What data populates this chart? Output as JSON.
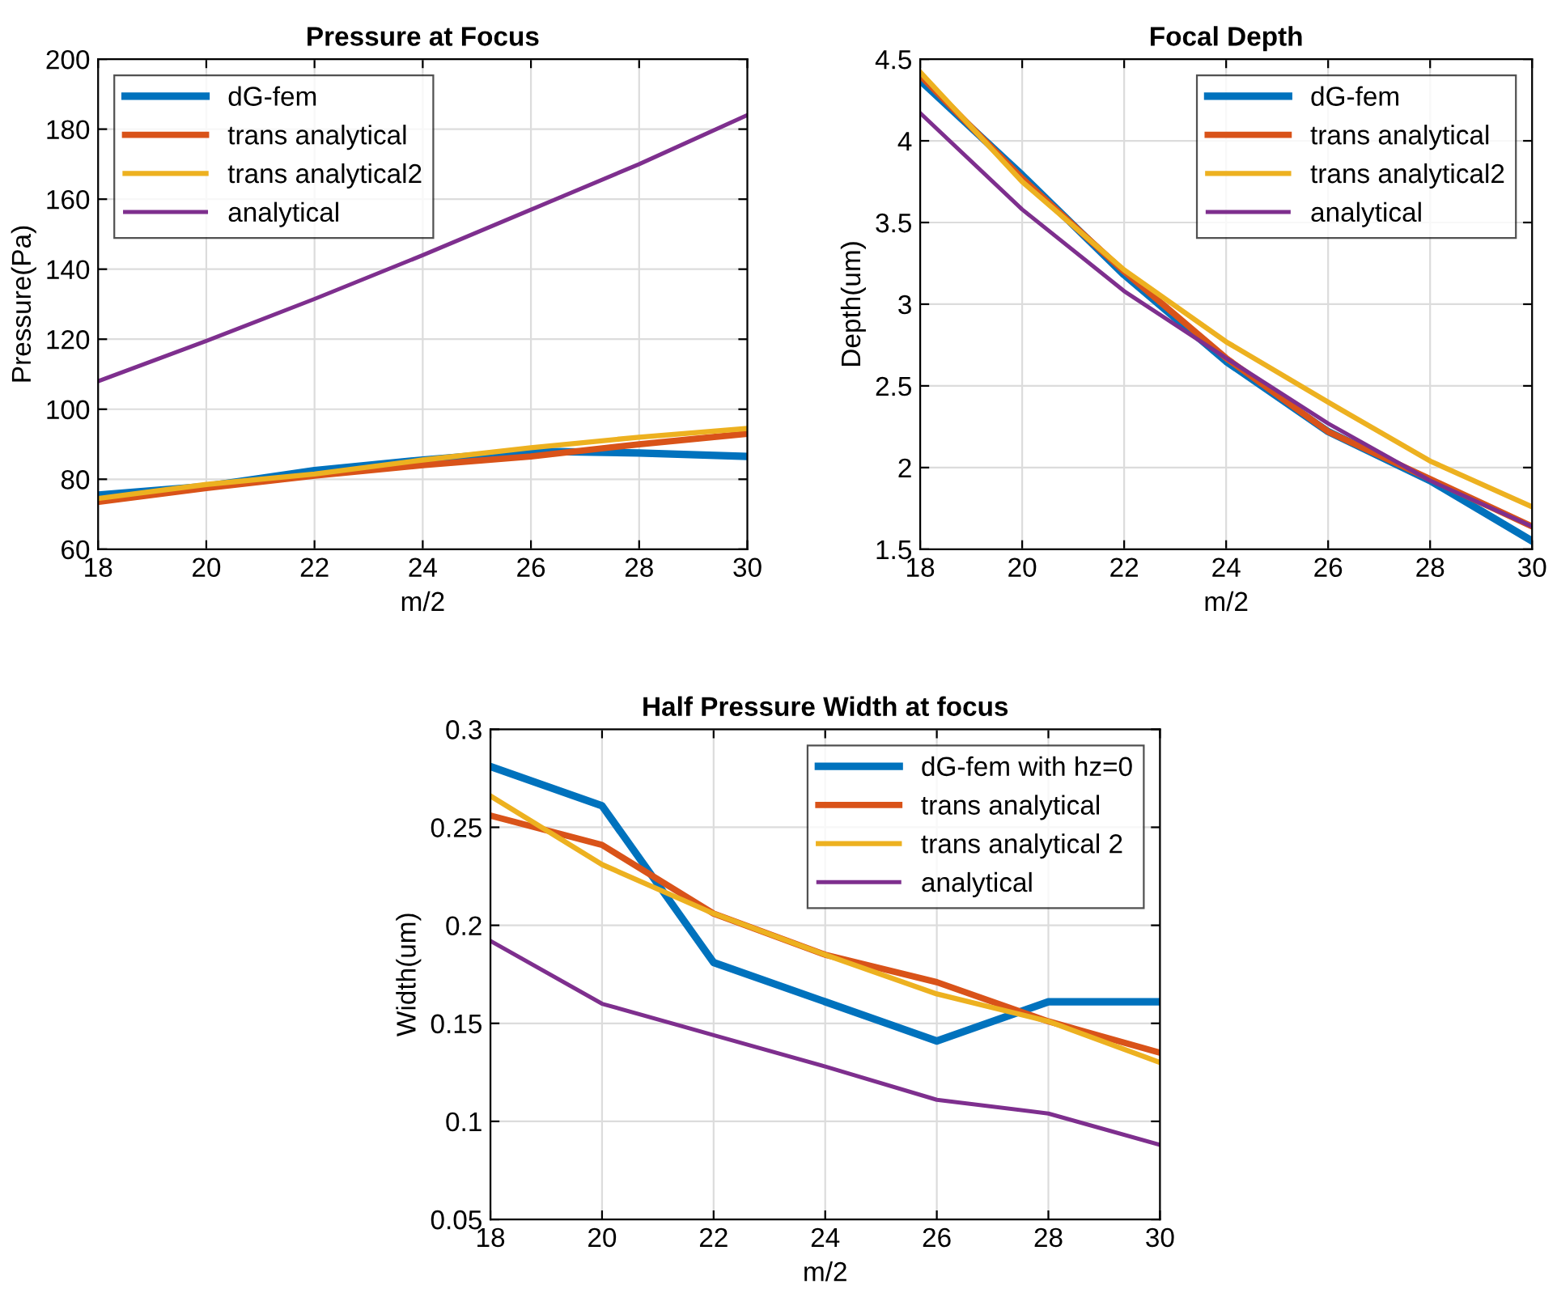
{
  "chart_data": [
    {
      "type": "line",
      "title": "Pressure at Focus",
      "xlabel": "m/2",
      "ylabel": "Pressure(Pa)",
      "x": [
        18,
        20,
        22,
        24,
        26,
        28,
        30
      ],
      "xlim": [
        18,
        30
      ],
      "xticks": [
        18,
        20,
        22,
        24,
        26,
        28,
        30
      ],
      "ylim": [
        60,
        200
      ],
      "yticks": [
        60,
        80,
        100,
        120,
        140,
        160,
        180,
        200
      ],
      "grid": true,
      "legend": "top left",
      "series": [
        {
          "name": "dG-fem",
          "color": "#0072bd",
          "values": [
            75.5,
            78,
            82.5,
            85.5,
            88,
            87.5,
            86.5
          ]
        },
        {
          "name": "trans analytical",
          "color": "#d95319",
          "values": [
            73.5,
            77.5,
            81,
            84,
            86.5,
            90,
            93
          ]
        },
        {
          "name": "trans analytical2",
          "color": "#edb120",
          "values": [
            74.5,
            78.5,
            81.5,
            85.5,
            89,
            92,
            94.5
          ]
        },
        {
          "name": "analytical",
          "color": "#7e2f8e",
          "values": [
            108,
            119.5,
            131.5,
            144,
            157,
            170,
            184
          ]
        }
      ]
    },
    {
      "type": "line",
      "title": "Focal Depth",
      "xlabel": "m/2",
      "ylabel": "Depth(um)",
      "x": [
        18,
        20,
        22,
        24,
        26,
        28,
        30
      ],
      "xlim": [
        18,
        30
      ],
      "xticks": [
        18,
        20,
        22,
        24,
        26,
        28,
        30
      ],
      "ylim": [
        1.5,
        4.5
      ],
      "yticks": [
        1.5,
        2,
        2.5,
        3,
        3.5,
        4,
        4.5
      ],
      "grid": true,
      "legend": "top right",
      "series": [
        {
          "name": "dG-fem",
          "color": "#0072bd",
          "values": [
            4.37,
            3.79,
            3.18,
            2.65,
            2.22,
            1.92,
            1.55
          ]
        },
        {
          "name": "trans analytical",
          "color": "#d95319",
          "values": [
            4.4,
            3.77,
            3.2,
            2.67,
            2.22,
            1.93,
            1.64
          ]
        },
        {
          "name": "trans analytical2",
          "color": "#edb120",
          "values": [
            4.42,
            3.75,
            3.21,
            2.77,
            2.4,
            2.04,
            1.76
          ]
        },
        {
          "name": "analytical",
          "color": "#7e2f8e",
          "values": [
            4.17,
            3.58,
            3.08,
            2.67,
            2.27,
            1.92,
            1.64
          ]
        }
      ]
    },
    {
      "type": "line",
      "title": "Half Pressure Width at focus",
      "xlabel": "m/2",
      "ylabel": "Width(um)",
      "x": [
        18,
        20,
        22,
        24,
        26,
        28,
        30
      ],
      "xlim": [
        18,
        30
      ],
      "xticks": [
        18,
        20,
        22,
        24,
        26,
        28,
        30
      ],
      "ylim": [
        0.05,
        0.3
      ],
      "yticks": [
        0.05,
        0.1,
        0.15,
        0.2,
        0.25,
        0.3
      ],
      "grid": true,
      "legend": "top right",
      "series": [
        {
          "name": "dG-fem with hz=0",
          "color": "#0072bd",
          "values": [
            0.281,
            0.261,
            0.181,
            0.161,
            0.141,
            0.161,
            0.161
          ]
        },
        {
          "name": "trans analytical",
          "color": "#d95319",
          "values": [
            0.256,
            0.241,
            0.206,
            0.185,
            0.171,
            0.151,
            0.135
          ]
        },
        {
          "name": "trans analytical 2",
          "color": "#edb120",
          "values": [
            0.266,
            0.231,
            0.206,
            0.185,
            0.165,
            0.151,
            0.13
          ]
        },
        {
          "name": "analytical",
          "color": "#7e2f8e",
          "values": [
            0.192,
            0.16,
            0.144,
            0.128,
            0.111,
            0.104,
            0.088
          ]
        }
      ]
    }
  ]
}
